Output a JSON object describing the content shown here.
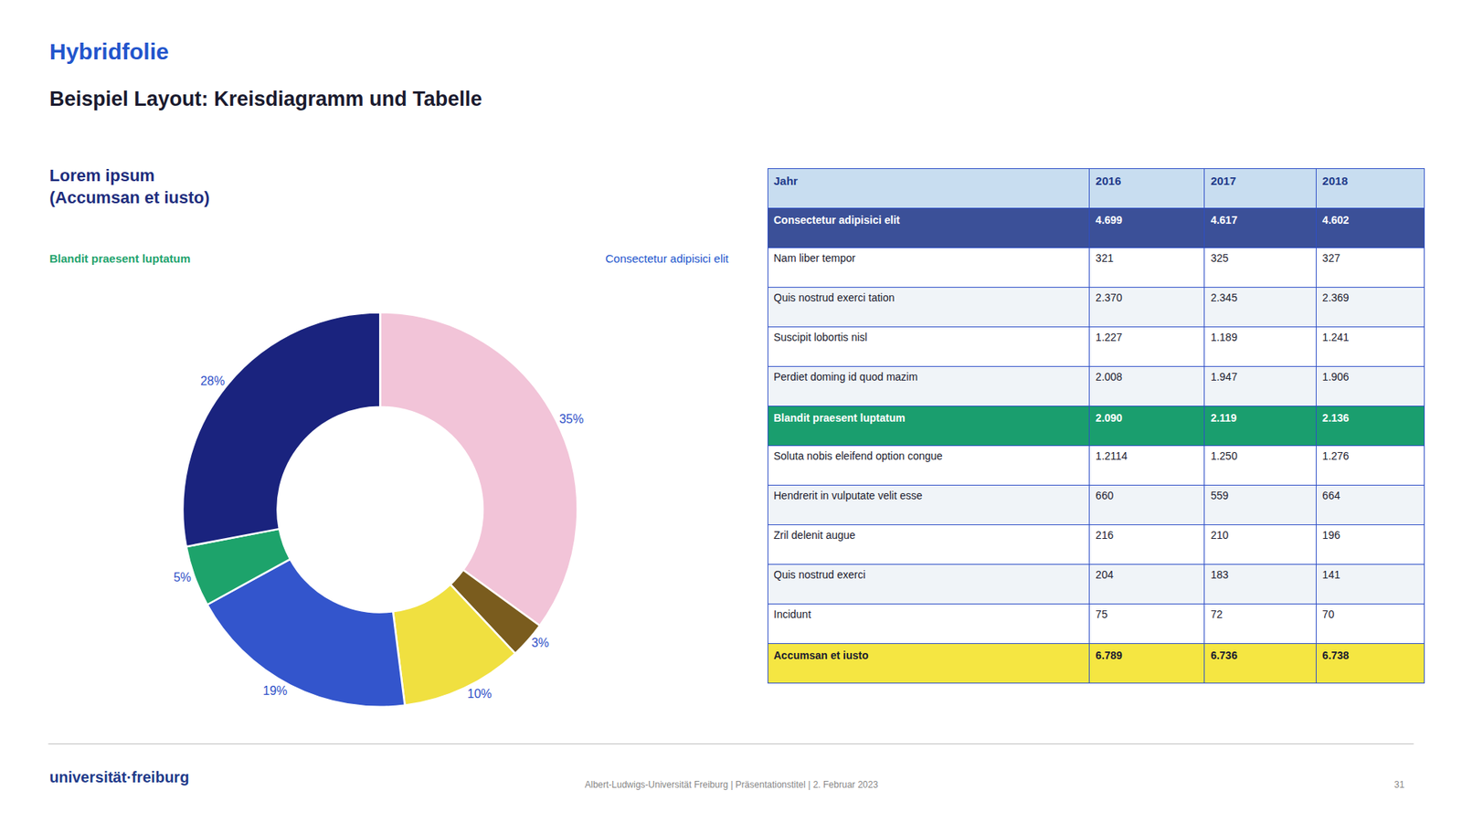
{
  "title": "Hybridfolie",
  "title_color": "#2255CC",
  "subtitle": "Beispiel Layout: Kreisdiagramm und Tabelle",
  "subtitle_color": "#1a1a2e",
  "footer": [
    {
      "text": "universität·freiburg",
      "color": "#1e3a8a"
    },
    {
      "text": "Albert-Ludwigs-Universität Freiburg | Präsentationstitel | 2. Februar 2023",
      "color": "#888888"
    },
    {
      "text": "31",
      "color": "#888888"
    }
  ],
  "chart_data": [
    {
      "type": "pie",
      "title": "Lorem ipsum\n(Accumsan et iusto)",
      "title_color": "#1e2d7d",
      "annotations": [
        {
          "text": "Blandit praesent luptatum",
          "color": "#1fa36e"
        },
        {
          "text": "Consectetur adipisici elit",
          "color": "#2255CC"
        }
      ],
      "values": [
        35,
        3,
        10,
        19,
        5,
        28
      ],
      "value_labels": [
        "35%",
        "3%",
        "10%",
        "19%",
        "5%",
        "28%"
      ],
      "colors": [
        "#f2c4d8",
        "#7a5c1e",
        "#f0e040",
        "#3355cc",
        "#1da36b",
        "#1a237e"
      ],
      "label_color": "#2e4fc7",
      "data_labels": true
    },
    {
      "type": "table",
      "columns": [
        "Jahr",
        "2016",
        "2017",
        "2018"
      ],
      "header_color": "#c8ddf0",
      "header_font_color": "#1e3a8a",
      "border_color": "#2e4fc7",
      "rows": [
        {
          "cells": [
            "Consectetur adipisici elit",
            "4.699",
            "4.617",
            "4.602"
          ],
          "bold": true,
          "color": "#3b5098",
          "font_color": "#ffffff"
        },
        {
          "cells": [
            "Nam liber tempor",
            "321",
            "325",
            "327"
          ],
          "bold": false,
          "color": "#ffffff",
          "font_color": "#1a1a2e"
        },
        {
          "cells": [
            "Quis nostrud exerci tation",
            "2.370",
            "2.345",
            "2.369"
          ],
          "bold": false,
          "color": "#f0f4f8",
          "font_color": "#1a1a2e"
        },
        {
          "cells": [
            "Suscipit lobortis nisl",
            "1.227",
            "1.189",
            "1.241"
          ],
          "bold": false,
          "color": "#ffffff",
          "font_color": "#1a1a2e"
        },
        {
          "cells": [
            "Perdiet doming id quod mazim",
            "2.008",
            "1.947",
            "1.906"
          ],
          "bold": false,
          "color": "#f0f4f8",
          "font_color": "#1a1a2e"
        },
        {
          "cells": [
            "Blandit praesent luptatum",
            "2.090",
            "2.119",
            "2.136"
          ],
          "bold": true,
          "color": "#1a9e6e",
          "font_color": "#ffffff"
        },
        {
          "cells": [
            "Soluta nobis eleifend option congue",
            "1.2114",
            "1.250",
            "1.276"
          ],
          "bold": false,
          "color": "#ffffff",
          "font_color": "#1a1a2e"
        },
        {
          "cells": [
            "Hendrerit in vulputate velit esse",
            "660",
            "559",
            "664"
          ],
          "bold": false,
          "color": "#f0f4f8",
          "font_color": "#1a1a2e"
        },
        {
          "cells": [
            "Zril delenit augue",
            "216",
            "210",
            "196"
          ],
          "bold": false,
          "color": "#ffffff",
          "font_color": "#1a1a2e"
        },
        {
          "cells": [
            "Quis nostrud exerci",
            "204",
            "183",
            "141"
          ],
          "bold": false,
          "color": "#f0f4f8",
          "font_color": "#1a1a2e"
        },
        {
          "cells": [
            "Incidunt",
            "75",
            "72",
            "70"
          ],
          "bold": false,
          "color": "#ffffff",
          "font_color": "#1a1a2e"
        },
        {
          "cells": [
            "Accumsan et iusto",
            "6.789",
            "6.736",
            "6.738"
          ],
          "bold": true,
          "color": "#f5e642",
          "font_color": "#1a1a2e"
        }
      ]
    }
  ]
}
